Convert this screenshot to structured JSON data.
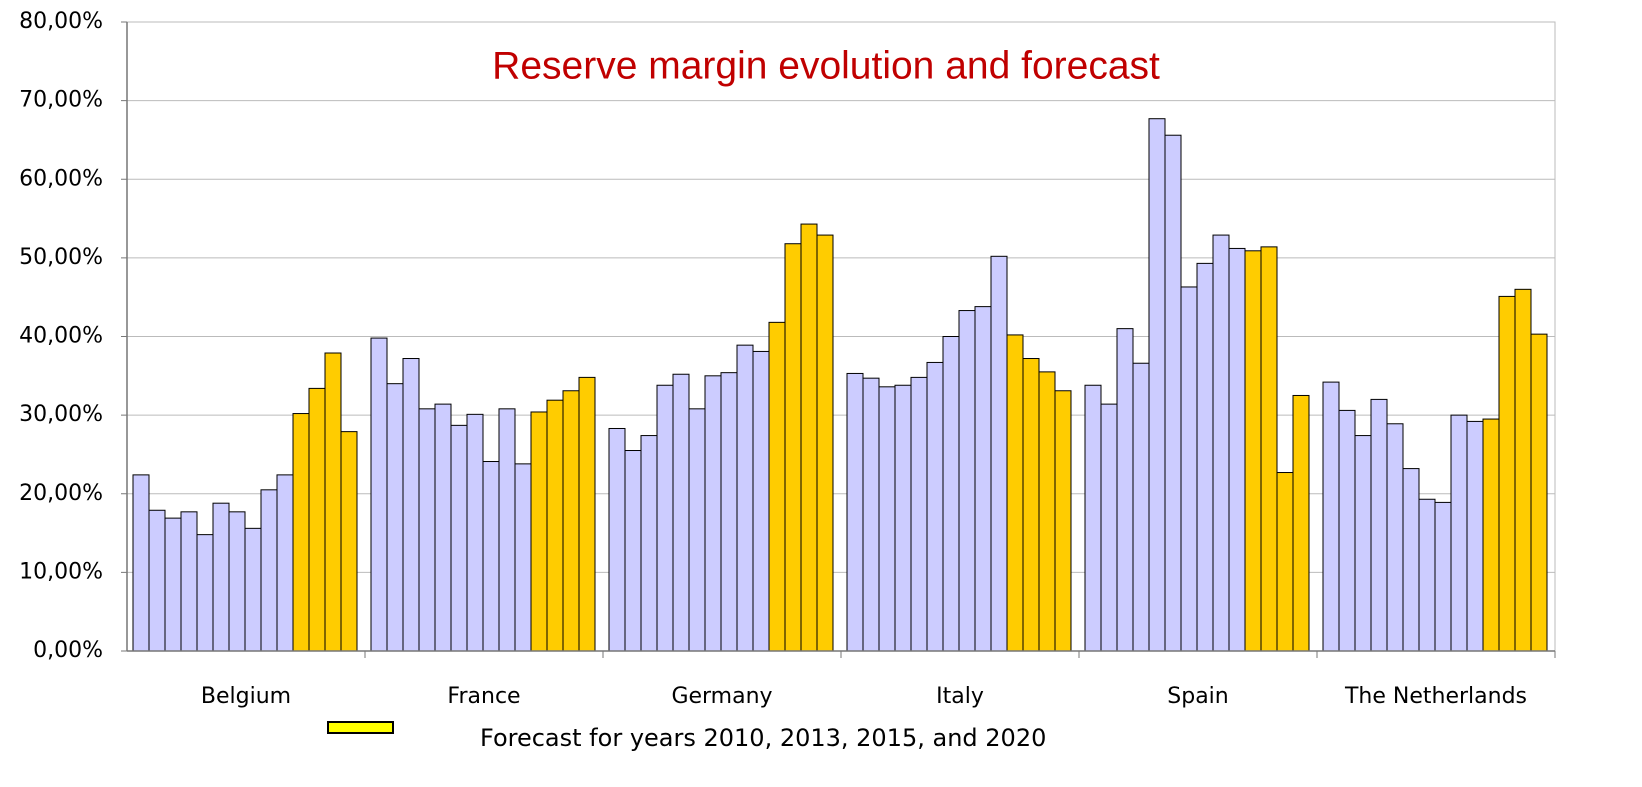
{
  "chart_data": {
    "type": "grouped_bar",
    "title": "Reserve margin evolution and forecast",
    "categories": [
      "Belgium",
      "France",
      "Germany",
      "Italy",
      "Spain",
      "The Netherlands"
    ],
    "series": [
      {
        "color": "#ccccff",
        "values": [
          [
            22.4,
            17.9,
            16.9,
            17.7,
            14.8,
            18.8,
            17.7,
            15.6,
            20.5,
            22.4
          ],
          [
            39.8,
            34.0,
            37.2,
            30.8,
            31.4,
            28.7,
            30.1,
            24.1,
            30.8,
            23.8
          ],
          [
            28.3,
            25.5,
            27.4,
            33.8,
            35.2,
            30.8,
            35.0,
            35.4,
            38.9,
            38.1
          ],
          [
            35.3,
            34.7,
            33.6,
            33.8,
            34.8,
            36.7,
            40.0,
            43.3,
            43.8,
            50.2
          ],
          [
            33.8,
            31.4,
            41.0,
            36.6,
            67.7,
            65.6,
            46.3,
            49.3,
            52.9,
            51.2
          ],
          [
            34.2,
            30.6,
            27.4,
            32.0,
            28.9,
            23.2,
            19.3,
            18.9,
            30.0,
            29.2
          ]
        ]
      },
      {
        "name": "Forecast for years 2010, 2013, 2015, and 2020",
        "color": "#ffcc00",
        "values": [
          [
            30.2,
            33.4,
            37.9,
            27.9
          ],
          [
            30.4,
            31.9,
            33.1,
            34.8
          ],
          [
            41.8,
            51.8,
            54.3,
            52.9
          ],
          [
            40.2,
            37.2,
            35.5,
            33.1
          ],
          [
            50.9,
            51.4,
            22.7,
            32.5
          ],
          [
            29.5,
            45.1,
            46.0,
            40.3
          ]
        ]
      }
    ],
    "ylim": [
      0,
      80
    ],
    "yticks": [
      {
        "value": 0,
        "label": "0,00%"
      },
      {
        "value": 10,
        "label": "10,00%"
      },
      {
        "value": 20,
        "label": "20,00%"
      },
      {
        "value": 30,
        "label": "30,00%"
      },
      {
        "value": 40,
        "label": "40,00%"
      },
      {
        "value": 50,
        "label": "50,00%"
      },
      {
        "value": 60,
        "label": "60,00%"
      },
      {
        "value": 70,
        "label": "70,00%"
      },
      {
        "value": 80,
        "label": "80,00%"
      }
    ],
    "grid": true
  }
}
